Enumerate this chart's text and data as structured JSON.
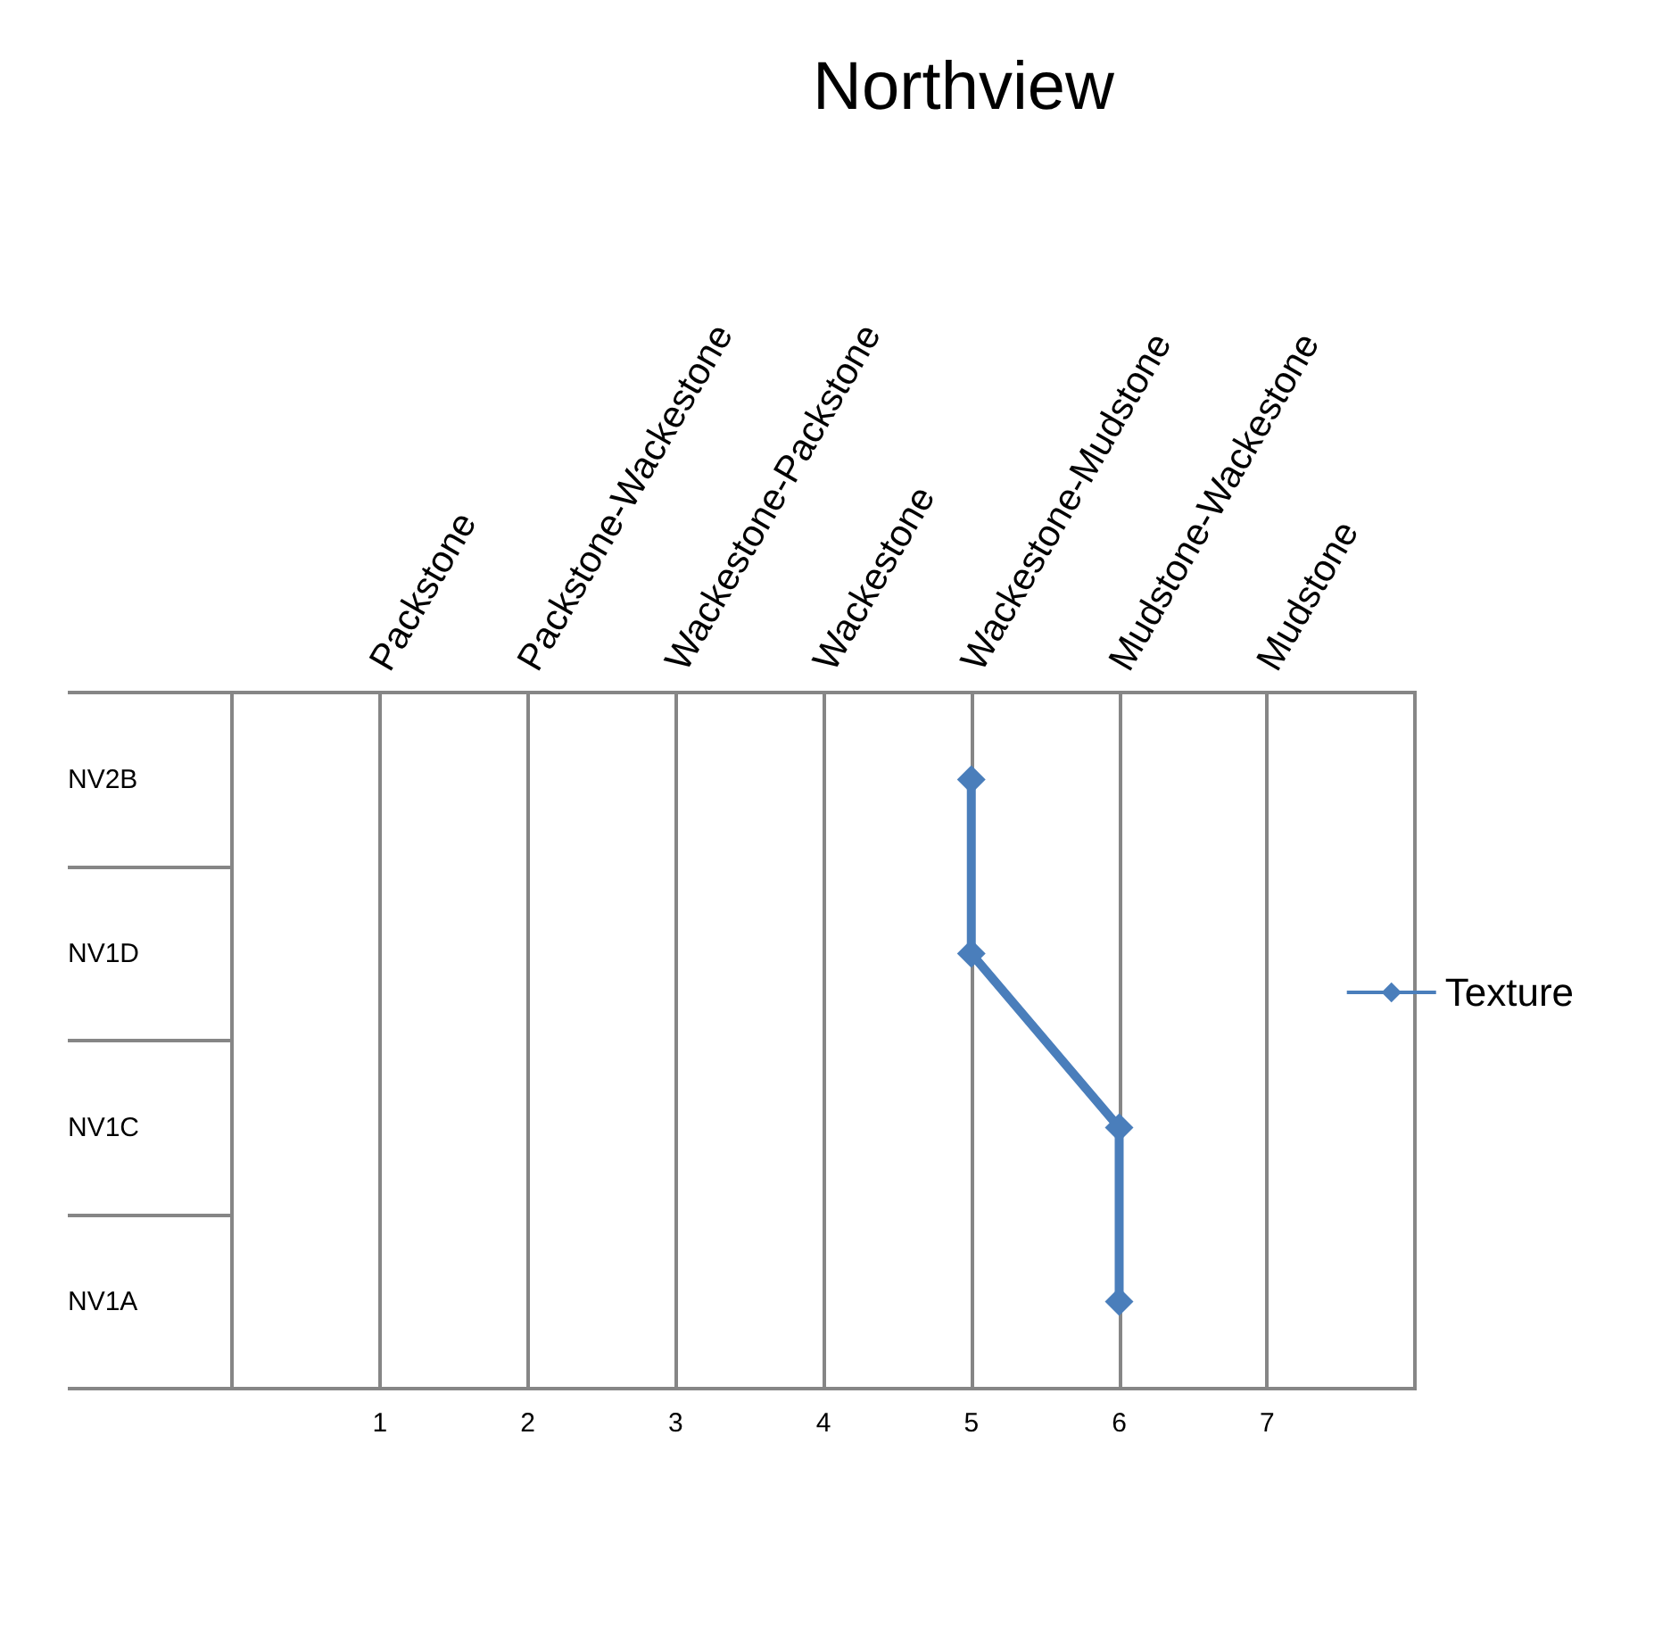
{
  "chart_data": {
    "type": "line",
    "orientation": "horizontal",
    "title": "Northview",
    "categories": [
      "NV2B",
      "NV1D",
      "NV1C",
      "NV1A"
    ],
    "series": [
      {
        "name": "Texture",
        "color": "#4a7ebb",
        "values": [
          5,
          5,
          6,
          6
        ]
      }
    ],
    "xlim": [
      0,
      8
    ],
    "xticks": [
      1,
      2,
      3,
      4,
      5,
      6,
      7
    ],
    "annotations": [
      "Packstone",
      "Packstone-Wackestone",
      "Wackestone-Packstone",
      "Wackestone",
      "Wackestone-Mudstone",
      "Mudstone-Wackestone",
      "Mudstone"
    ],
    "grid": "x",
    "legend": "right",
    "marker": "diamond",
    "line_style": "solid"
  }
}
